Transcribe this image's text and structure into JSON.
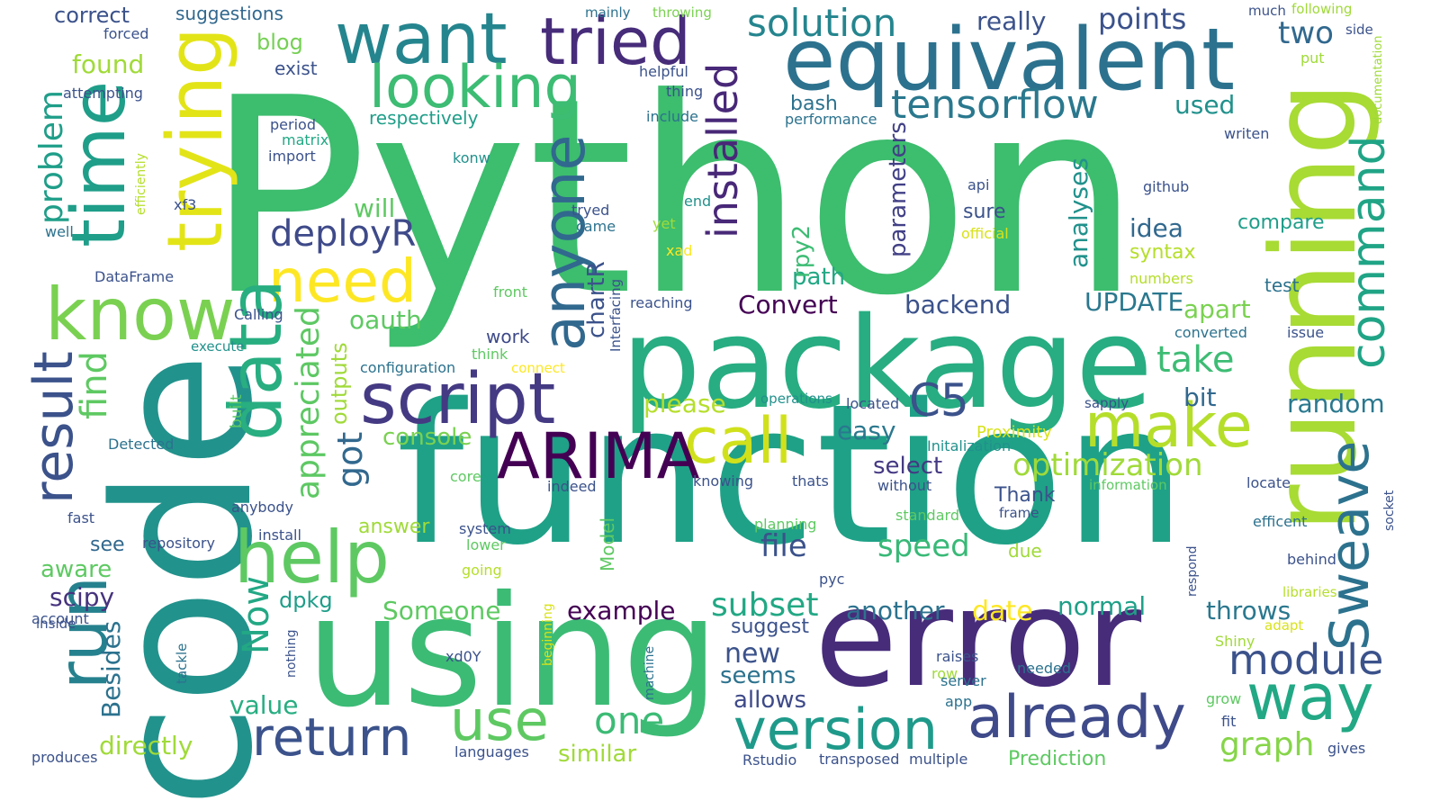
{
  "palette": {
    "purple": "#472c7a",
    "indigo": "#3b528b",
    "blue": "#2c728e",
    "teal": "#21908d",
    "green": "#27ad81",
    "mint": "#5dc963",
    "lime": "#aadc32",
    "yellow": "#fde725"
  },
  "words": [
    {
      "text": "Python",
      "color": "#3dbd6e"
    },
    {
      "text": "function",
      "color": "#1fa187"
    },
    {
      "text": "code",
      "color": "#22928c"
    },
    {
      "text": "using",
      "color": "#3cbb75"
    },
    {
      "text": "package",
      "color": "#27ad81"
    },
    {
      "text": "error",
      "color": "#472c7a"
    },
    {
      "text": "running",
      "color": "#a8db34"
    },
    {
      "text": "equivalent",
      "color": "#2c728e"
    },
    {
      "text": "want",
      "color": "#25858e"
    },
    {
      "text": "tried",
      "color": "#472c7a"
    },
    {
      "text": "looking",
      "color": "#3dbc74"
    },
    {
      "text": "know",
      "color": "#7ad151"
    },
    {
      "text": "script",
      "color": "#443a83"
    },
    {
      "text": "help",
      "color": "#5ec962"
    },
    {
      "text": "call",
      "color": "#d0e11c"
    },
    {
      "text": "ARIMA",
      "color": "#440154"
    },
    {
      "text": "make",
      "color": "#b5de2b"
    },
    {
      "text": "need",
      "color": "#fde725"
    },
    {
      "text": "data",
      "color": "#28ae80"
    },
    {
      "text": "time",
      "color": "#1f9e89"
    },
    {
      "text": "trying",
      "color": "#e3e418"
    },
    {
      "text": "anyone",
      "color": "#31688e"
    },
    {
      "text": "result",
      "color": "#3b528b"
    },
    {
      "text": "run",
      "color": "#26818e"
    },
    {
      "text": "way",
      "color": "#22a884"
    },
    {
      "text": "already",
      "color": "#3e4a89"
    },
    {
      "text": "version",
      "color": "#1f9a8a"
    },
    {
      "text": "return",
      "color": "#3b528b"
    },
    {
      "text": "use",
      "color": "#5ec962"
    },
    {
      "text": "Sweave",
      "color": "#2c728e"
    },
    {
      "text": "command",
      "color": "#20a486"
    },
    {
      "text": "installed",
      "color": "#482878"
    },
    {
      "text": "tensorflow",
      "color": "#2a788e"
    },
    {
      "text": "solution",
      "color": "#25858e"
    },
    {
      "text": "module",
      "color": "#3b528b"
    },
    {
      "text": "C5",
      "color": "#3b528b"
    },
    {
      "text": "optimization",
      "color": "#a0da39"
    },
    {
      "text": "deployR",
      "color": "#3e4a89"
    },
    {
      "text": "one",
      "color": "#3cbb75"
    },
    {
      "text": "problem",
      "color": "#1f9e89"
    },
    {
      "text": "find",
      "color": "#5ec962"
    },
    {
      "text": "got",
      "color": "#31688e"
    },
    {
      "text": "appreciated",
      "color": "#5dc863"
    },
    {
      "text": "graph",
      "color": "#86d549"
    },
    {
      "text": "take",
      "color": "#3dbc74"
    },
    {
      "text": "subset",
      "color": "#22a884"
    },
    {
      "text": "file",
      "color": "#3b528b"
    },
    {
      "text": "speed",
      "color": "#38b977"
    },
    {
      "text": "two",
      "color": "#31688e"
    },
    {
      "text": "points",
      "color": "#3b528b"
    },
    {
      "text": "really",
      "color": "#3b528b"
    },
    {
      "text": "parameters",
      "color": "#424086"
    },
    {
      "text": "analyses",
      "color": "#21918c"
    },
    {
      "text": "idea",
      "color": "#31688e"
    },
    {
      "text": "syntax",
      "color": "#b5de2b"
    },
    {
      "text": "compare",
      "color": "#1f9e89"
    },
    {
      "text": "UPDATE",
      "color": "#2a788e"
    },
    {
      "text": "apart",
      "color": "#7ad151"
    },
    {
      "text": "backend",
      "color": "#3b528b"
    },
    {
      "text": "Convert",
      "color": "#440154"
    },
    {
      "text": "path",
      "color": "#22a884"
    },
    {
      "text": "rpy2",
      "color": "#3dbc74"
    },
    {
      "text": "random",
      "color": "#2a788e"
    },
    {
      "text": "bit",
      "color": "#31688e"
    },
    {
      "text": "easy",
      "color": "#2a788e"
    },
    {
      "text": "select",
      "color": "#443983"
    },
    {
      "text": "please",
      "color": "#b5de2b"
    },
    {
      "text": "console",
      "color": "#7ad151"
    },
    {
      "text": "Someone",
      "color": "#5ec962"
    },
    {
      "text": "example",
      "color": "#440154"
    },
    {
      "text": "another",
      "color": "#2c728e"
    },
    {
      "text": "date",
      "color": "#fde725"
    },
    {
      "text": "normal",
      "color": "#1fa088"
    },
    {
      "text": "throws",
      "color": "#2a788e"
    },
    {
      "text": "new",
      "color": "#3b528b"
    },
    {
      "text": "seems",
      "color": "#2c728e"
    },
    {
      "text": "allows",
      "color": "#3e4a89"
    },
    {
      "text": "similar",
      "color": "#a0da39"
    },
    {
      "text": "directly",
      "color": "#a0da39"
    },
    {
      "text": "value",
      "color": "#27ad81"
    },
    {
      "text": "dpkg",
      "color": "#1f9e89"
    },
    {
      "text": "Now",
      "color": "#22a884"
    },
    {
      "text": "Besides",
      "color": "#2c728e"
    },
    {
      "text": "see",
      "color": "#31688e"
    },
    {
      "text": "aware",
      "color": "#5ec962"
    },
    {
      "text": "scipy",
      "color": "#46337e"
    },
    {
      "text": "found",
      "color": "#a0da39"
    },
    {
      "text": "blog",
      "color": "#75d054"
    },
    {
      "text": "exist",
      "color": "#3b528b"
    },
    {
      "text": "correct",
      "color": "#3b528b"
    },
    {
      "text": "suggestions",
      "color": "#31688e"
    },
    {
      "text": "forced",
      "color": "#3b528b"
    },
    {
      "text": "attempting",
      "color": "#3b528b"
    },
    {
      "text": "respectively",
      "color": "#1f9e89"
    },
    {
      "text": "will",
      "color": "#5ec962"
    },
    {
      "text": "oauth",
      "color": "#5ec962"
    },
    {
      "text": "outputs",
      "color": "#a0da39"
    },
    {
      "text": "chartR",
      "color": "#3b528b"
    },
    {
      "text": "used",
      "color": "#21918c"
    },
    {
      "text": "bash",
      "color": "#2c728e"
    },
    {
      "text": "performance",
      "color": "#2c728e"
    },
    {
      "text": "include",
      "color": "#2c728e"
    },
    {
      "text": "thing",
      "color": "#3b528b"
    },
    {
      "text": "helpful",
      "color": "#3b528b"
    },
    {
      "text": "mainly",
      "color": "#2c728e"
    },
    {
      "text": "throwing",
      "color": "#7ad151"
    },
    {
      "text": "much",
      "color": "#3b528b"
    },
    {
      "text": "following",
      "color": "#a0da39"
    },
    {
      "text": "side",
      "color": "#3b528b"
    },
    {
      "text": "put",
      "color": "#a0da39"
    },
    {
      "text": "documentation",
      "color": "#a0da39"
    },
    {
      "text": "writen",
      "color": "#3b528b"
    },
    {
      "text": "github",
      "color": "#3b528b"
    },
    {
      "text": "api",
      "color": "#3b528b"
    },
    {
      "text": "sure",
      "color": "#3b528b"
    },
    {
      "text": "official",
      "color": "#d8e219"
    },
    {
      "text": "numbers",
      "color": "#b5de2b"
    },
    {
      "text": "test",
      "color": "#2c728e"
    },
    {
      "text": "converted",
      "color": "#2c728e"
    },
    {
      "text": "issue",
      "color": "#3b528b"
    },
    {
      "text": "period",
      "color": "#3b528b"
    },
    {
      "text": "matrix",
      "color": "#22a884"
    },
    {
      "text": "import",
      "color": "#3b528b"
    },
    {
      "text": "konw",
      "color": "#21918c"
    },
    {
      "text": "efficiently",
      "color": "#b5de2b"
    },
    {
      "text": "xf3",
      "color": "#3b528b"
    },
    {
      "text": "well",
      "color": "#2c728e"
    },
    {
      "text": "DataFrame",
      "color": "#3b528b"
    },
    {
      "text": "tryed",
      "color": "#3b528b"
    },
    {
      "text": "came",
      "color": "#2c728e"
    },
    {
      "text": "end",
      "color": "#21918c"
    },
    {
      "text": "yet",
      "color": "#a0da39"
    },
    {
      "text": "xad",
      "color": "#fde725"
    },
    {
      "text": "front",
      "color": "#5ec962"
    },
    {
      "text": "reaching",
      "color": "#3b528b"
    },
    {
      "text": "Interfacing",
      "color": "#3b528b"
    },
    {
      "text": "Calling",
      "color": "#3b528b"
    },
    {
      "text": "execute",
      "color": "#21918c"
    },
    {
      "text": "work",
      "color": "#3e4a89"
    },
    {
      "text": "think",
      "color": "#5ec962"
    },
    {
      "text": "connect",
      "color": "#fde725"
    },
    {
      "text": "configuration",
      "color": "#2c728e"
    },
    {
      "text": "Detected",
      "color": "#2c728e"
    },
    {
      "text": "built",
      "color": "#5ec962"
    },
    {
      "text": "operations",
      "color": "#21918c"
    },
    {
      "text": "located",
      "color": "#3b528b"
    },
    {
      "text": "sapply",
      "color": "#3b528b"
    },
    {
      "text": "Proximity",
      "color": "#d8e219"
    },
    {
      "text": "Initalization",
      "color": "#21918c"
    },
    {
      "text": "core",
      "color": "#5ec962"
    },
    {
      "text": "indeed",
      "color": "#3b528b"
    },
    {
      "text": "knowing",
      "color": "#3b528b"
    },
    {
      "text": "thats",
      "color": "#3b528b"
    },
    {
      "text": "without",
      "color": "#3b528b"
    },
    {
      "text": "information",
      "color": "#5ec962"
    },
    {
      "text": "locate",
      "color": "#3b528b"
    },
    {
      "text": "Thank",
      "color": "#3b528b"
    },
    {
      "text": "standard",
      "color": "#5ec962"
    },
    {
      "text": "frame",
      "color": "#3b528b"
    },
    {
      "text": "fast",
      "color": "#3b528b"
    },
    {
      "text": "anybody",
      "color": "#3b528b"
    },
    {
      "text": "answer",
      "color": "#a0da39"
    },
    {
      "text": "system",
      "color": "#3b528b"
    },
    {
      "text": "lower",
      "color": "#5ec962"
    },
    {
      "text": "Model",
      "color": "#5ec962"
    },
    {
      "text": "planning",
      "color": "#5ec962"
    },
    {
      "text": "due",
      "color": "#a0da39"
    },
    {
      "text": "efficent",
      "color": "#2c728e"
    },
    {
      "text": "socket",
      "color": "#3b528b"
    },
    {
      "text": "repository",
      "color": "#3b528b"
    },
    {
      "text": "install",
      "color": "#3b528b"
    },
    {
      "text": "going",
      "color": "#b5de2b"
    },
    {
      "text": "pyc",
      "color": "#3b528b"
    },
    {
      "text": "respond",
      "color": "#3b528b"
    },
    {
      "text": "behind",
      "color": "#3b528b"
    },
    {
      "text": "libraries",
      "color": "#b5de2b"
    },
    {
      "text": "account",
      "color": "#3b528b"
    },
    {
      "text": "inside",
      "color": "#3b528b"
    },
    {
      "text": "beginning",
      "color": "#d8e219"
    },
    {
      "text": "suggest",
      "color": "#3b528b"
    },
    {
      "text": "adapt",
      "color": "#d8e219"
    },
    {
      "text": "Shiny",
      "color": "#a0da39"
    },
    {
      "text": "nothing",
      "color": "#3b528b"
    },
    {
      "text": "tackle",
      "color": "#2c728e"
    },
    {
      "text": "xd0Y",
      "color": "#3b528b"
    },
    {
      "text": "machine",
      "color": "#2c728e"
    },
    {
      "text": "raises",
      "color": "#3b528b"
    },
    {
      "text": "row",
      "color": "#a0da39"
    },
    {
      "text": "server",
      "color": "#2c728e"
    },
    {
      "text": "needed",
      "color": "#2c728e"
    },
    {
      "text": "app",
      "color": "#2c728e"
    },
    {
      "text": "grow",
      "color": "#5ec962"
    },
    {
      "text": "fit",
      "color": "#3b528b"
    },
    {
      "text": "gives",
      "color": "#3b528b"
    },
    {
      "text": "produces",
      "color": "#3b528b"
    },
    {
      "text": "languages",
      "color": "#3b528b"
    },
    {
      "text": "Rstudio",
      "color": "#3b528b"
    },
    {
      "text": "transposed",
      "color": "#3b528b"
    },
    {
      "text": "multiple",
      "color": "#3b528b"
    },
    {
      "text": "Prediction",
      "color": "#5ec962"
    }
  ]
}
